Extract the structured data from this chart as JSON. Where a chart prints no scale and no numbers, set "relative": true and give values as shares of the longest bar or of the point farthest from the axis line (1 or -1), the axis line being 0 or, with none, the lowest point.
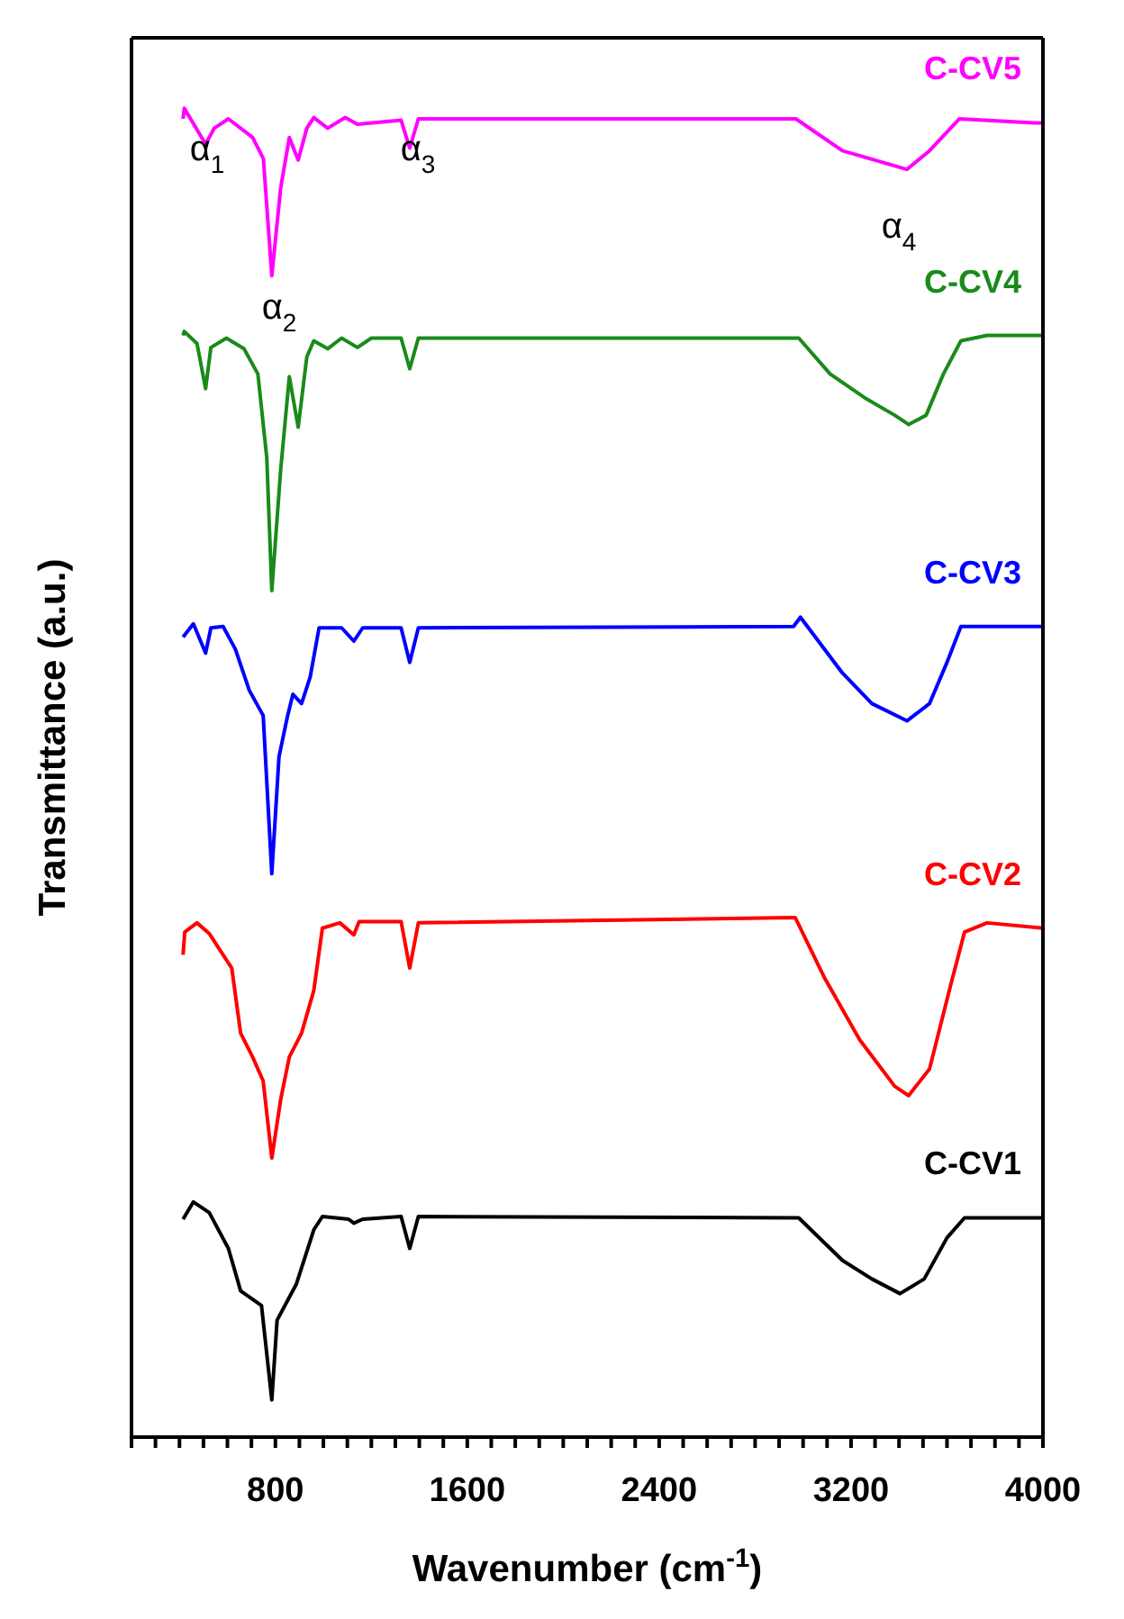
{
  "chart_data": {
    "type": "line",
    "relative": true,
    "xlabel": "Wavenumber (cm$^{-1}$)",
    "ylabel": "Transmittance (a.u.)",
    "xlim": [
      200,
      4000
    ],
    "xticks": [
      {
        "value": 200,
        "label": null
      },
      {
        "value": 300,
        "label": null
      },
      {
        "value": 400,
        "label": null
      },
      {
        "value": 500,
        "label": null
      },
      {
        "value": 600,
        "label": null
      },
      {
        "value": 700,
        "label": null
      },
      800,
      {
        "value": 900,
        "label": null
      },
      {
        "value": 1000,
        "label": null
      },
      {
        "value": 1100,
        "label": null
      },
      {
        "value": 1200,
        "label": null
      },
      {
        "value": 1300,
        "label": null
      },
      {
        "value": 1400,
        "label": null
      },
      {
        "value": 1500,
        "label": null
      },
      1600,
      {
        "value": 1700,
        "label": null
      },
      {
        "value": 1800,
        "label": null
      },
      {
        "value": 1900,
        "label": null
      },
      {
        "value": 2000,
        "label": null
      },
      {
        "value": 2100,
        "label": null
      },
      {
        "value": 2200,
        "label": null
      },
      {
        "value": 2300,
        "label": null
      },
      2400,
      {
        "value": 2500,
        "label": null
      },
      {
        "value": 2600,
        "label": null
      },
      {
        "value": 2700,
        "label": null
      },
      {
        "value": 2800,
        "label": null
      },
      {
        "value": 2900,
        "label": null
      },
      {
        "value": 3000,
        "label": null
      },
      {
        "value": 3100,
        "label": null
      },
      3200,
      {
        "value": 3300,
        "label": null
      },
      {
        "value": 3400,
        "label": null
      },
      {
        "value": 3500,
        "label": null
      },
      {
        "value": 3600,
        "label": null
      },
      {
        "value": 3700,
        "label": null
      },
      {
        "value": 3800,
        "label": null
      },
      {
        "value": 3900,
        "label": null
      },
      4000
    ],
    "series": [
      {
        "name": "C-CV5",
        "color": "#ff00ff",
        "x": [
          415,
          420,
          509,
          545,
          604,
          705,
          750,
          785,
          822,
          858,
          895,
          931,
          960,
          1018,
          1091,
          1142,
          1324,
          1360,
          1396,
          2970,
          3164,
          3433,
          3527,
          3651,
          3964,
          4000
        ],
        "values": [
          0.992,
          1.0,
          0.973,
          0.985,
          0.992,
          0.978,
          0.962,
          0.874,
          0.94,
          0.978,
          0.961,
          0.985,
          0.993,
          0.985,
          0.993,
          0.988,
          0.991,
          0.97,
          0.992,
          0.992,
          0.968,
          0.954,
          0.968,
          0.992,
          0.989,
          0.989
        ]
      },
      {
        "name": "C-CV4",
        "color": "#1a8a1a",
        "x": [
          415,
          420,
          473,
          509,
          531,
          596,
          669,
          727,
          764,
          785,
          822,
          858,
          895,
          931,
          960,
          1018,
          1076,
          1142,
          1200,
          1324,
          1360,
          1396,
          2982,
          3113,
          3258,
          3382,
          3440,
          3513,
          3585,
          3658,
          3767,
          3978,
          4000
        ],
        "values": [
          0.829,
          0.832,
          0.823,
          0.789,
          0.82,
          0.827,
          0.819,
          0.8,
          0.737,
          0.637,
          0.728,
          0.798,
          0.76,
          0.813,
          0.825,
          0.819,
          0.827,
          0.82,
          0.827,
          0.827,
          0.804,
          0.827,
          0.827,
          0.8,
          0.782,
          0.769,
          0.762,
          0.769,
          0.8,
          0.825,
          0.829,
          0.829,
          0.829
        ]
      },
      {
        "name": "C-CV3",
        "color": "#0000ff",
        "x": [
          415,
          458,
          509,
          531,
          582,
          633,
          691,
          749,
          785,
          815,
          851,
          873,
          909,
          945,
          982,
          1076,
          1127,
          1164,
          1324,
          1360,
          1396,
          2960,
          2989,
          3018,
          3164,
          3287,
          3433,
          3527,
          3600,
          3658,
          4000
        ],
        "values": [
          0.602,
          0.612,
          0.59,
          0.609,
          0.61,
          0.593,
          0.562,
          0.543,
          0.424,
          0.512,
          0.543,
          0.559,
          0.552,
          0.572,
          0.609,
          0.609,
          0.599,
          0.609,
          0.609,
          0.583,
          0.609,
          0.61,
          0.617,
          0.61,
          0.575,
          0.552,
          0.539,
          0.552,
          0.583,
          0.61,
          0.61
        ]
      },
      {
        "name": "C-CV2",
        "color": "#ff0000",
        "x": [
          415,
          422,
          473,
          524,
          567,
          618,
          655,
          705,
          749,
          785,
          822,
          858,
          909,
          960,
          996,
          1069,
          1127,
          1149,
          1324,
          1360,
          1396,
          2967,
          3091,
          3236,
          3382,
          3440,
          3527,
          3615,
          3673,
          3767,
          4000
        ],
        "values": [
          0.363,
          0.38,
          0.387,
          0.379,
          0.367,
          0.353,
          0.304,
          0.286,
          0.268,
          0.21,
          0.254,
          0.286,
          0.304,
          0.336,
          0.383,
          0.387,
          0.378,
          0.388,
          0.388,
          0.353,
          0.387,
          0.391,
          0.345,
          0.299,
          0.264,
          0.257,
          0.277,
          0.34,
          0.38,
          0.387,
          0.383
        ]
      },
      {
        "name": "C-CV1",
        "color": "#000000",
        "x": [
          415,
          458,
          524,
          604,
          655,
          742,
          785,
          807,
          887,
          960,
          996,
          1105,
          1127,
          1164,
          1324,
          1360,
          1396,
          2982,
          3164,
          3287,
          3404,
          3505,
          3600,
          3673,
          4000
        ],
        "values": [
          0.164,
          0.177,
          0.169,
          0.142,
          0.11,
          0.099,
          0.028,
          0.088,
          0.115,
          0.156,
          0.166,
          0.164,
          0.161,
          0.164,
          0.166,
          0.142,
          0.166,
          0.165,
          0.133,
          0.119,
          0.108,
          0.119,
          0.15,
          0.165,
          0.165
        ]
      }
    ],
    "annotations": [
      "α$_{1}$",
      "α$_{2}$",
      "α$_{3}$",
      "α$_{4}$"
    ]
  }
}
